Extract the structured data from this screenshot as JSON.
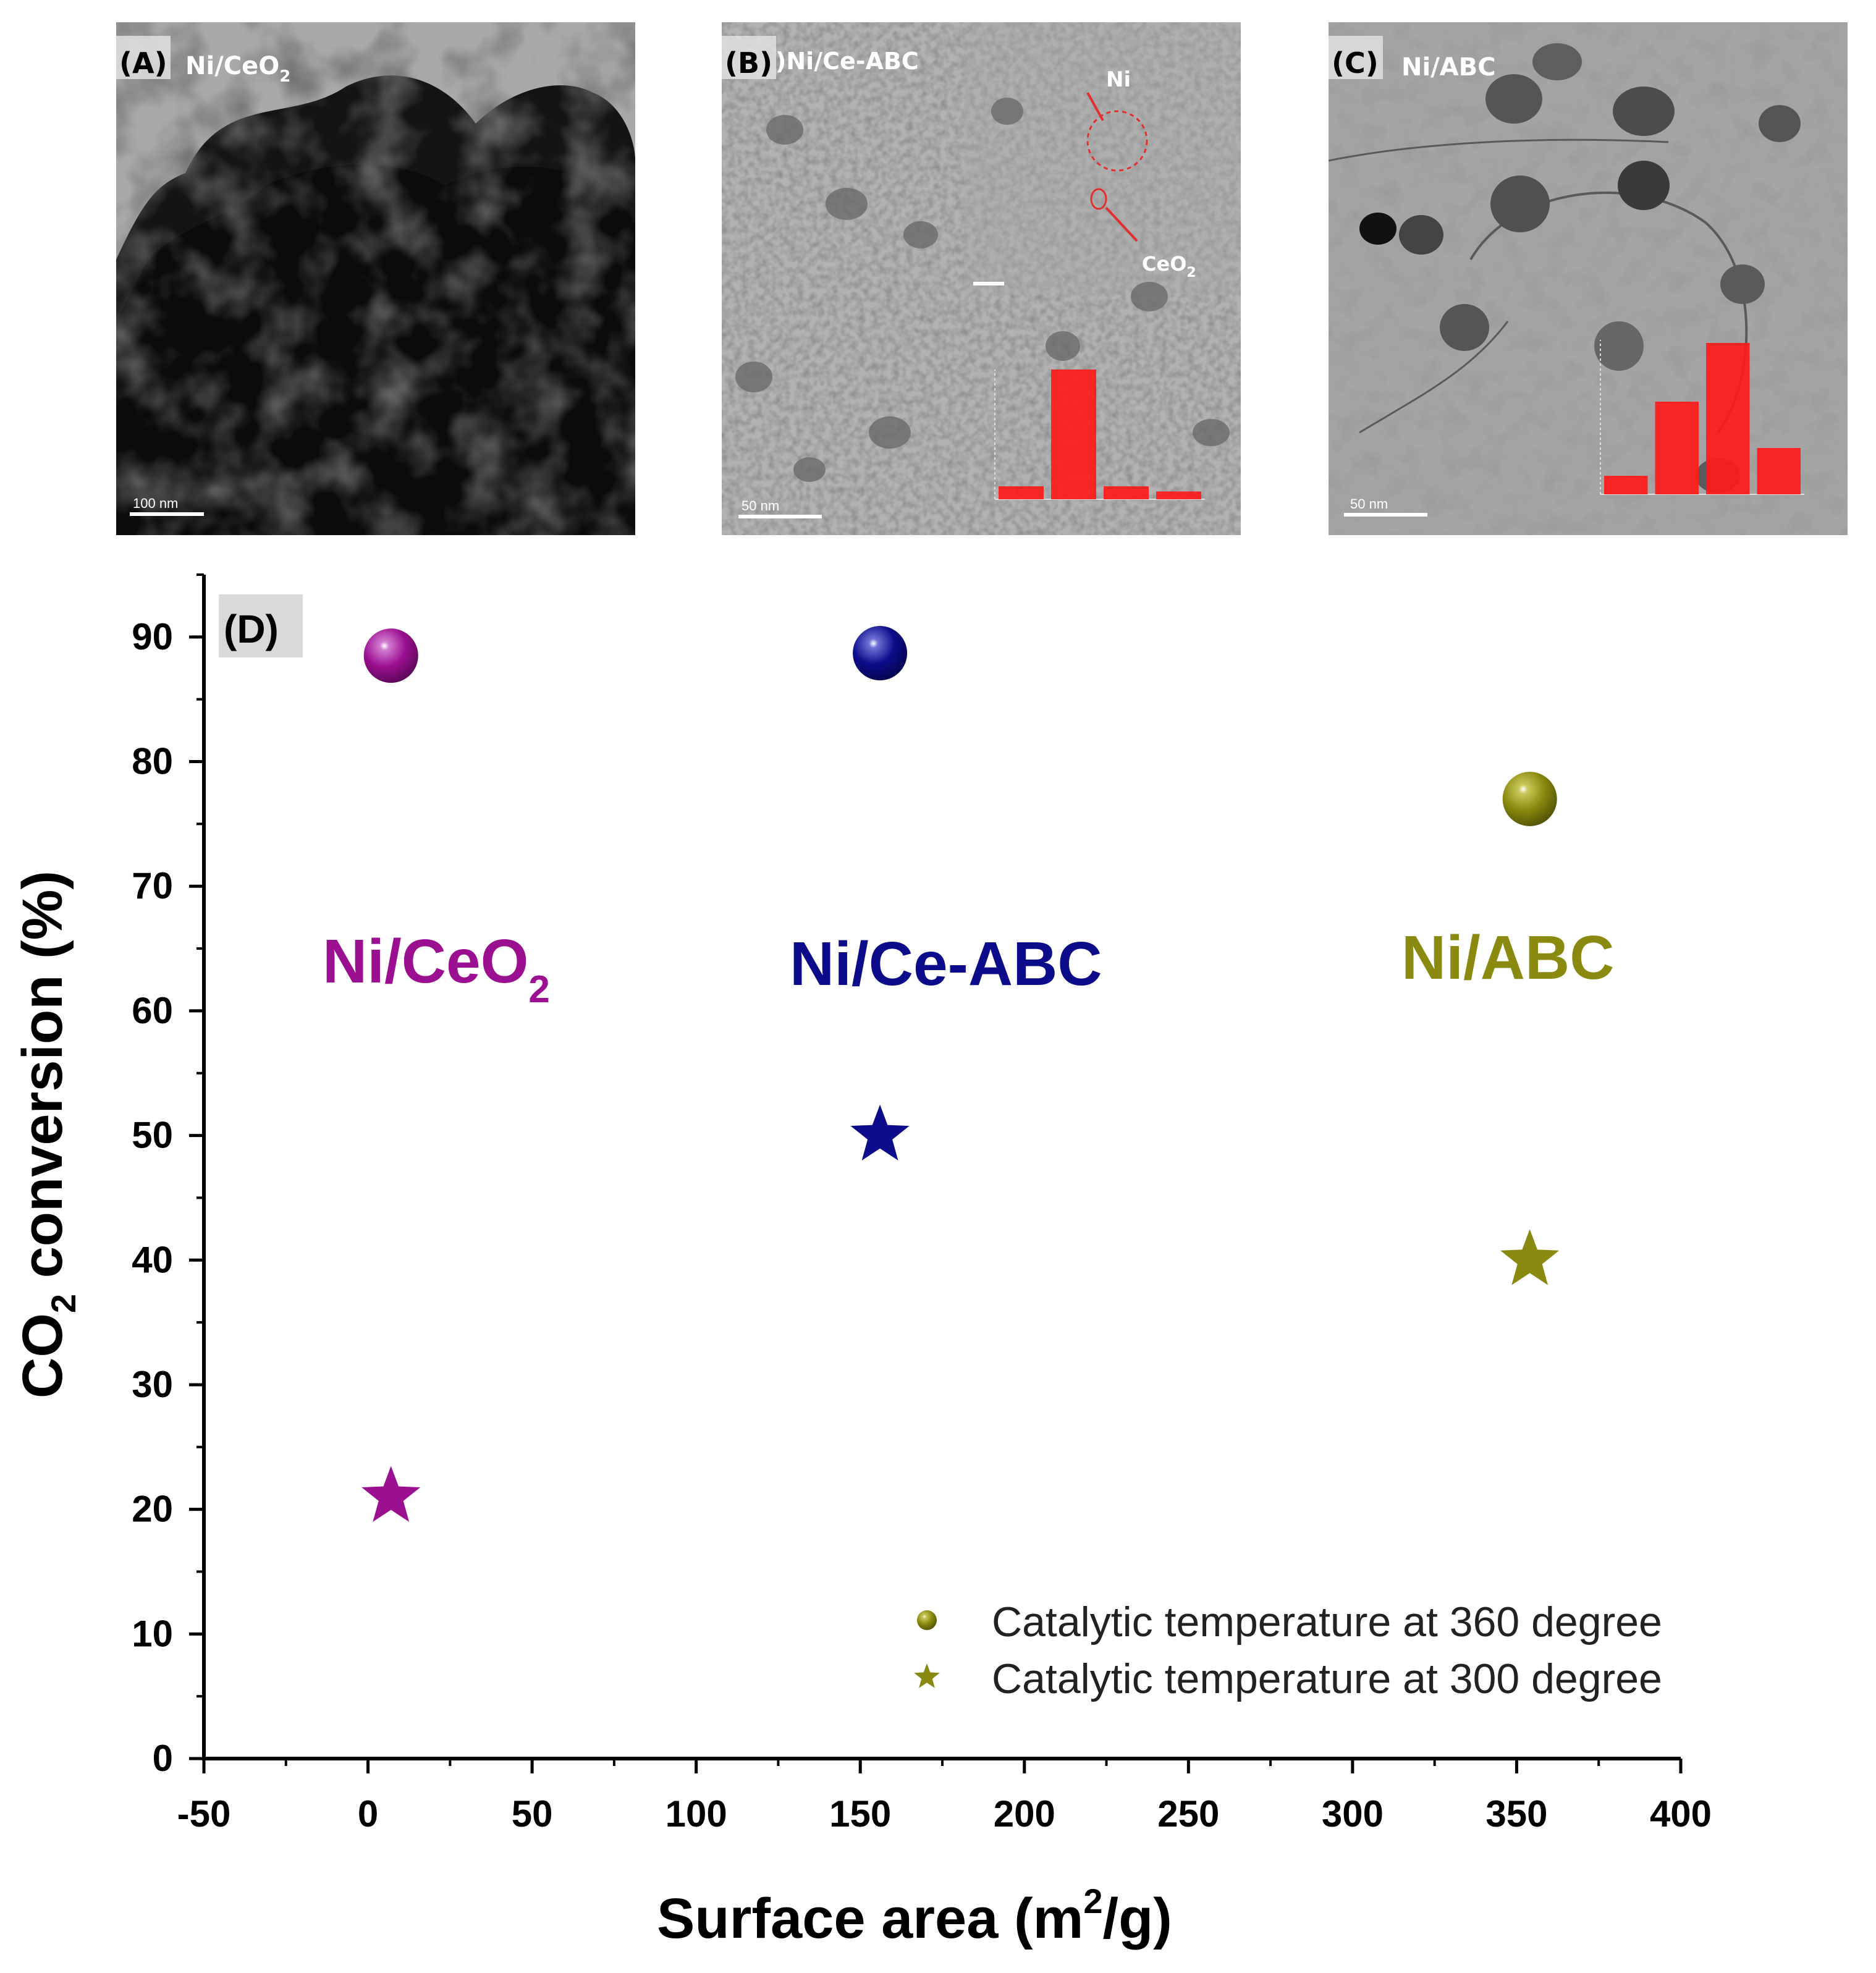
{
  "panels": [
    {
      "letter": "(A)",
      "title_main": "Ni/CeO",
      "title_sub": "2",
      "scale_bar": "100 nm"
    },
    {
      "letter": "(B)",
      "title_main": ")Ni/Ce-ABC",
      "title_sub": "",
      "scale_bar": "50 nm",
      "callouts": [
        {
          "main": "Ni",
          "sub": ""
        },
        {
          "main": "CeO",
          "sub": "2"
        }
      ],
      "histogram": [
        0.1,
        1.0,
        0.1,
        0.06
      ]
    },
    {
      "letter": "(C)",
      "title_main": "Ni/ABC",
      "title_sub": "",
      "scale_bar": "50 nm",
      "histogram": [
        0.12,
        0.6,
        0.98,
        0.3
      ]
    }
  ],
  "colors": {
    "Ni/CeO2": "#9b0f91",
    "Ni/Ce-ABC": "#0c0c8a",
    "Ni/ABC": "#8a8a10",
    "histogram": "#ff1a1a"
  },
  "chart_data": {
    "type": "scatter",
    "panel_label": "(D)",
    "xlabel_main": "Surface area (m",
    "xlabel_sup": "2",
    "xlabel_tail": "/g)",
    "ylabel_main": "CO",
    "ylabel_sub": "2",
    "ylabel_tail": " conversion (%)",
    "xlim": [
      -50,
      400
    ],
    "ylim": [
      0,
      95
    ],
    "xticks": [
      "-50",
      "0",
      "50",
      "100",
      "150",
      "200",
      "250",
      "300",
      "350",
      "400"
    ],
    "yticks": [
      "0",
      "10",
      "20",
      "30",
      "40",
      "50",
      "60",
      "70",
      "80",
      "90"
    ],
    "series": [
      {
        "name": "Catalytic temperature at 360 degree",
        "marker": "sphere",
        "points": [
          {
            "sample": "Ni/CeO2",
            "x": 7,
            "y": 88.5
          },
          {
            "sample": "Ni/Ce-ABC",
            "x": 156,
            "y": 88.7
          },
          {
            "sample": "Ni/ABC",
            "x": 354,
            "y": 77
          }
        ]
      },
      {
        "name": "Catalytic temperature at 300 degree",
        "marker": "star",
        "points": [
          {
            "sample": "Ni/CeO2",
            "x": 7,
            "y": 21
          },
          {
            "sample": "Ni/Ce-ABC",
            "x": 156,
            "y": 50
          },
          {
            "sample": "Ni/ABC",
            "x": 354,
            "y": 40
          }
        ]
      }
    ],
    "annotations": [
      {
        "main": "Ni/CeO",
        "sub": "2",
        "color_key": "Ni/CeO2"
      },
      {
        "main": "Ni/Ce-ABC",
        "sub": "",
        "color_key": "Ni/Ce-ABC"
      },
      {
        "main": "Ni/ABC",
        "sub": "",
        "color_key": "Ni/ABC"
      }
    ],
    "legend_position": "bottom-right",
    "grid": false
  }
}
